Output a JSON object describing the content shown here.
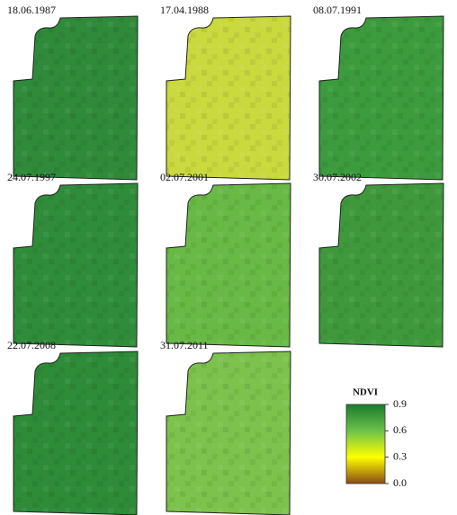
{
  "panels": [
    {
      "date": "18.06.1987",
      "color": "#2f8a3a"
    },
    {
      "date": "17.04.1988",
      "color": "#c9d93e"
    },
    {
      "date": "08.07.1991",
      "color": "#3c9b3d"
    },
    {
      "date": "24.07.1997",
      "color": "#2f8c3a"
    },
    {
      "date": "02.07.2001",
      "color": "#68b945"
    },
    {
      "date": "30.07.2002",
      "color": "#3f993c"
    },
    {
      "date": "22.07.2008",
      "color": "#2e8b38"
    },
    {
      "date": "31.07.2011",
      "color": "#7cc24c"
    }
  ],
  "legend": {
    "title": "NDVI",
    "ticks": [
      {
        "value": 0,
        "label": "0.0"
      },
      0.3,
      0.6,
      0.9
    ],
    "colors": [
      {
        "value": 0,
        "color": "#8b4a14"
      },
      {
        "value": 0.3,
        "color": "#ffff00"
      },
      {
        "value": 0.6,
        "color": "#6cc24a"
      },
      {
        "value": 0.9,
        "color": "#1c7a2c"
      }
    ]
  }
}
